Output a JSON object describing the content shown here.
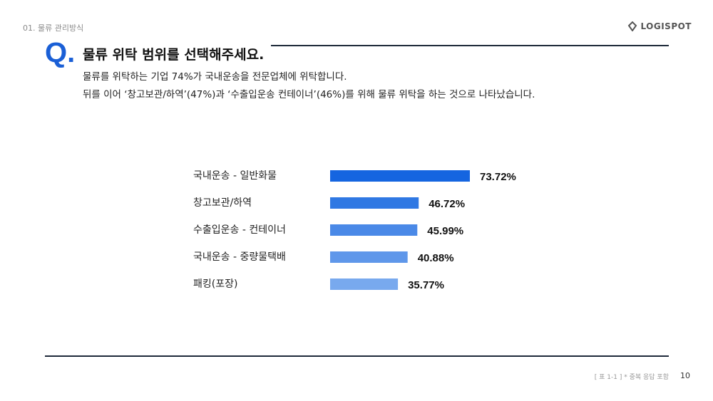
{
  "header": {
    "section_label": "01. 물류 관리방식",
    "brand": "LOGISPOT"
  },
  "question": {
    "mark": "Q.",
    "title": "물류 위탁 범위를 선택해주세요.",
    "line1": "물류를 위탁하는 기업 74%가 국내운송을 전문업체에 위탁합니다.",
    "line2": "뒤를 이어 ‘창고보관/하역’(47%)과 ‘수출입운송 컨테이너’(46%)를 위해 물류 위탁을 하는 것으로 나타났습니다."
  },
  "chart_data": {
    "type": "bar",
    "orientation": "horizontal",
    "categories": [
      "국내운송 - 일반화물",
      "창고보관/하역",
      "수출입운송 - 컨테이너",
      "국내운송 - 중량물택배",
      "패킹(포장)"
    ],
    "values": [
      73.72,
      46.72,
      45.99,
      40.88,
      35.77
    ],
    "value_labels": [
      "73.72%",
      "46.72%",
      "45.99%",
      "40.88%",
      "35.77%"
    ],
    "colors": [
      "#1565e0",
      "#2f78e3",
      "#4a89e7",
      "#5f97ea",
      "#78a9ee"
    ],
    "xlim": [
      0,
      73.72
    ],
    "grid": false,
    "legend": "none"
  },
  "footer": {
    "note": "[ 표 1-1 ] * 중복 응답 포함",
    "page": "10"
  }
}
